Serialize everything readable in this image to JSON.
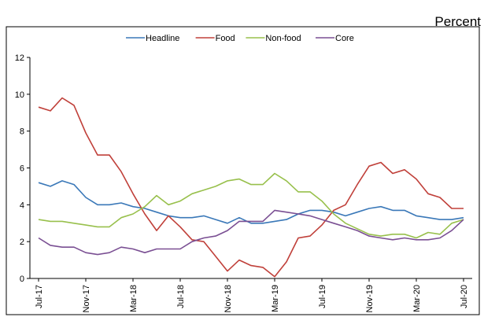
{
  "chart_data": {
    "type": "line",
    "unit": "Percent",
    "legend_position": "top-center",
    "grid": false,
    "ylim": [
      0,
      12
    ],
    "yticks": [
      "0",
      "2",
      "4",
      "6",
      "8",
      "10",
      "12"
    ],
    "x": [
      "Jul-17",
      "Aug-17",
      "Sep-17",
      "Oct-17",
      "Nov-17",
      "Dec-17",
      "Jan-18",
      "Feb-18",
      "Mar-18",
      "Apr-18",
      "May-18",
      "Jun-18",
      "Jul-18",
      "Aug-18",
      "Sep-18",
      "Oct-18",
      "Nov-18",
      "Dec-18",
      "Jan-19",
      "Feb-19",
      "Mar-19",
      "Apr-19",
      "May-19",
      "Jun-19",
      "Jul-19",
      "Aug-19",
      "Sep-19",
      "Oct-19",
      "Nov-19",
      "Dec-19",
      "Jan-20",
      "Feb-20",
      "Mar-20",
      "Apr-20",
      "May-20",
      "Jun-20",
      "Jul-20"
    ],
    "xtick_labels": [
      "Jul-17",
      "Nov-17",
      "Mar-18",
      "Jul-18",
      "Nov-18",
      "Mar-19",
      "Jul-19",
      "Nov-19",
      "Mar-20",
      "Jul-20"
    ],
    "series": [
      {
        "name": "Headline",
        "color": "#3a78b8",
        "values": [
          5.2,
          5.0,
          5.3,
          5.1,
          4.4,
          4.0,
          4.0,
          4.1,
          3.9,
          3.8,
          3.6,
          3.4,
          3.3,
          3.3,
          3.4,
          3.2,
          3.0,
          3.3,
          3.0,
          3.0,
          3.1,
          3.2,
          3.5,
          3.7,
          3.7,
          3.6,
          3.4,
          3.6,
          3.8,
          3.9,
          3.7,
          3.7,
          3.4,
          3.3,
          3.2,
          3.2,
          3.3
        ]
      },
      {
        "name": "Food",
        "color": "#c0403a",
        "values": [
          9.3,
          9.1,
          9.8,
          9.4,
          7.9,
          6.7,
          6.7,
          5.8,
          4.6,
          3.5,
          2.6,
          3.4,
          2.8,
          2.1,
          2.0,
          1.2,
          0.4,
          1.0,
          0.7,
          0.6,
          0.1,
          0.9,
          2.2,
          2.3,
          2.9,
          3.7,
          4.0,
          5.1,
          6.1,
          6.3,
          5.7,
          5.9,
          5.4,
          4.6,
          4.4,
          3.8,
          3.8
        ]
      },
      {
        "name": "Non-food",
        "color": "#98c04c",
        "values": [
          3.2,
          3.1,
          3.1,
          3.0,
          2.9,
          2.8,
          2.8,
          3.3,
          3.5,
          3.9,
          4.5,
          4.0,
          4.2,
          4.6,
          4.8,
          5.0,
          5.3,
          5.4,
          5.1,
          5.1,
          5.7,
          5.3,
          4.7,
          4.7,
          4.2,
          3.5,
          3.0,
          2.7,
          2.4,
          2.3,
          2.4,
          2.4,
          2.2,
          2.5,
          2.4,
          3.0,
          3.2
        ]
      },
      {
        "name": "Core",
        "color": "#7a4f93",
        "values": [
          2.2,
          1.8,
          1.7,
          1.7,
          1.4,
          1.3,
          1.4,
          1.7,
          1.6,
          1.4,
          1.6,
          1.6,
          1.6,
          2.0,
          2.2,
          2.3,
          2.6,
          3.1,
          3.1,
          3.1,
          3.7,
          3.6,
          3.5,
          3.4,
          3.2,
          3.0,
          2.8,
          2.6,
          2.3,
          2.2,
          2.1,
          2.2,
          2.1,
          2.1,
          2.2,
          2.6,
          3.2
        ]
      }
    ]
  }
}
